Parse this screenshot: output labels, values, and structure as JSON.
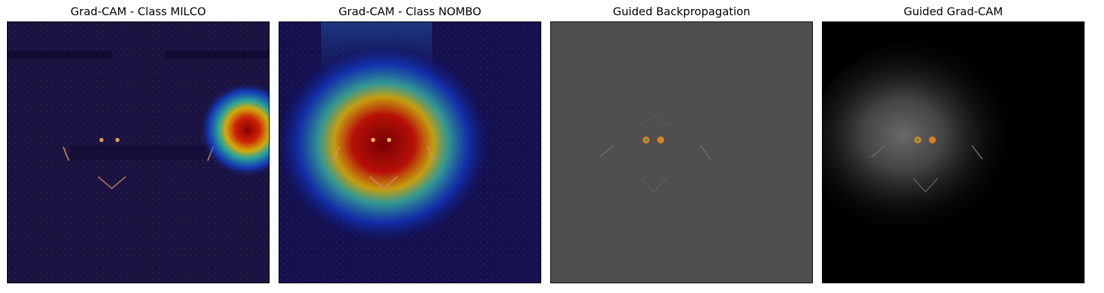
{
  "figure": {
    "panels": [
      {
        "title": "Grad-CAM - Class MILCO"
      },
      {
        "title": "Grad-CAM - Class NOMBO"
      },
      {
        "title": "Guided Backpropagation"
      },
      {
        "title": "Guided Grad-CAM"
      }
    ]
  },
  "colors": {
    "sonar_background": "#1a1240",
    "guided_backprop_gray": "#4f4f4f",
    "guided_gradcam_black": "#000000"
  }
}
